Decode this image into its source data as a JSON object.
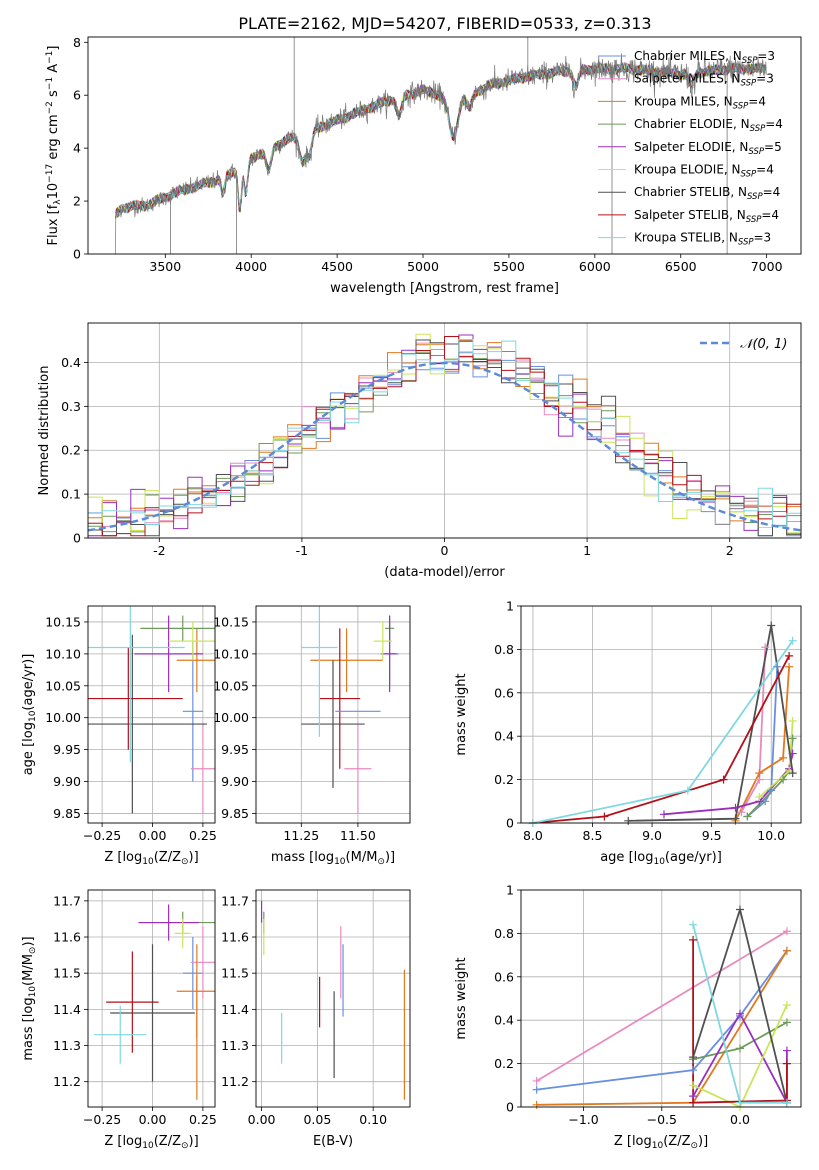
{
  "title": "PLATE=2162, MJD=54207, FIBERID=0533, z=0.313",
  "colors": {
    "chabrier_miles": "#6a8fe0",
    "salpeter_miles": "#e88ac0",
    "kroupa_miles": "#e0791f",
    "chabrier_elodie": "#6e9b5a",
    "salpeter_elodie": "#9a2fbf",
    "kroupa_elodie": "#cbe55a",
    "chabrier_stelib": "#505050",
    "salpeter_stelib": "#b3101a",
    "kroupa_stelib": "#7fd8e0",
    "data": "#777777",
    "gaussian": "#5b8ad6",
    "grid": "#b0b0b0"
  },
  "chart_data": [
    {
      "id": "spectrum",
      "type": "line",
      "xlabel": "wavelength [Angstrom, rest frame]",
      "ylabel": "Flux [f_λ 10^-17 erg cm^-2 s^-1 A^-1]",
      "xlim": [
        3050,
        7200
      ],
      "ylim": [
        0,
        8.2
      ],
      "xticks": [
        3500,
        4000,
        4500,
        5000,
        5500,
        6000,
        6500,
        7000
      ],
      "yticks": [
        0,
        2,
        4,
        6,
        8
      ],
      "legend_position": "top-right",
      "legend": [
        {
          "key": "chabrier_miles",
          "label": "Chabrier MILES, N",
          "sub": "SSP",
          "tail": "=3"
        },
        {
          "key": "salpeter_miles",
          "label": "Salpeter MILES, N",
          "sub": "SSP",
          "tail": "=3"
        },
        {
          "key": "kroupa_miles",
          "label": "Kroupa MILES, N",
          "sub": "SSP",
          "tail": "=4"
        },
        {
          "key": "chabrier_elodie",
          "label": "Chabrier ELODIE, N",
          "sub": "SSP",
          "tail": "=4"
        },
        {
          "key": "salpeter_elodie",
          "label": "Salpeter ELODIE, N",
          "sub": "SSP",
          "tail": "=5"
        },
        {
          "key": "kroupa_elodie",
          "label": "Kroupa ELODIE, N",
          "sub": "SSP",
          "tail": "=4"
        },
        {
          "key": "chabrier_stelib",
          "label": "Chabrier STELIB, N",
          "sub": "SSP",
          "tail": "=4"
        },
        {
          "key": "salpeter_stelib",
          "label": "Salpeter STELIB, N",
          "sub": "SSP",
          "tail": "=4"
        },
        {
          "key": "kroupa_stelib",
          "label": "Kroupa STELIB, N",
          "sub": "SSP",
          "tail": "=3"
        }
      ],
      "continuum": {
        "x": [
          3200,
          3250,
          3400,
          3550,
          3700,
          3850,
          4000,
          4200,
          4400,
          4600,
          4800,
          5000,
          5200,
          5400,
          5600,
          5800,
          6000,
          6200,
          6500,
          6800,
          7000
        ],
        "y": [
          1.4,
          1.75,
          1.85,
          2.3,
          2.6,
          2.9,
          3.6,
          4.3,
          4.8,
          5.3,
          5.8,
          6.2,
          5.8,
          6.4,
          6.7,
          6.9,
          7.0,
          7.0,
          6.8,
          7.0,
          7.0
        ]
      }
    },
    {
      "id": "residuals",
      "type": "bar",
      "xlabel": "(data-model)/error",
      "ylabel": "Normed distribution",
      "xlim": [
        -2.5,
        2.5
      ],
      "ylim": [
        0,
        0.49
      ],
      "xticks": [
        -2,
        -1,
        0,
        1,
        2
      ],
      "yticks": [
        0.0,
        0.1,
        0.2,
        0.3,
        0.4
      ],
      "grid": true,
      "legend_position": "top-right",
      "gaussian_label": "N(0, 1)",
      "bin_width": 0.1
    },
    {
      "id": "age_vs_Z",
      "type": "scatter",
      "xlabel": "Z [log10(Z/Z⊙)]",
      "ylabel": "age  [log10(age/yr)]",
      "xlim": [
        -0.32,
        0.31
      ],
      "ylim": [
        9.835,
        10.175
      ],
      "xticks": [
        -0.25,
        0.0,
        0.25
      ],
      "xticklabels": [
        "−0.25",
        "0.00",
        "0.25"
      ],
      "yticks": [
        9.85,
        9.9,
        9.95,
        10.0,
        10.05,
        10.1,
        10.15
      ],
      "yticklabels": [
        "9.85",
        "9.90",
        "9.95",
        "10.00",
        "10.05",
        "10.10",
        "10.15"
      ],
      "grid": true,
      "points": [
        {
          "key": "chabrier_miles",
          "x": 0.2,
          "xerr": 0.05,
          "y": 10.01,
          "yerr": 0.11
        },
        {
          "key": "salpeter_miles",
          "x": 0.25,
          "xerr": 0.06,
          "y": 9.92,
          "yerr": 0.07
        },
        {
          "key": "kroupa_miles",
          "x": 0.22,
          "xerr": 0.1,
          "y": 10.09,
          "yerr": 0.05
        },
        {
          "key": "chabrier_elodie",
          "x": 0.15,
          "xerr": 0.21,
          "y": 10.14,
          "yerr": 0.02
        },
        {
          "key": "salpeter_elodie",
          "x": 0.08,
          "xerr": 0.17,
          "y": 10.1,
          "yerr": 0.06
        },
        {
          "key": "kroupa_elodie",
          "x": 0.2,
          "xerr": 0.12,
          "y": 10.12,
          "yerr": 0.03
        },
        {
          "key": "chabrier_stelib",
          "x": -0.1,
          "xerr": 0.37,
          "y": 9.99,
          "yerr": 0.14
        },
        {
          "key": "salpeter_stelib",
          "x": -0.12,
          "xerr": 0.27,
          "y": 10.03,
          "yerr": 0.08
        },
        {
          "key": "kroupa_stelib",
          "x": -0.11,
          "xerr": 0.27,
          "y": 10.11,
          "yerr": 0.18
        }
      ]
    },
    {
      "id": "age_vs_mass",
      "type": "scatter",
      "xlabel": "mass [log10(M/M⊙)]",
      "ylabel": "",
      "xlim": [
        11.05,
        11.73
      ],
      "ylim": [
        9.835,
        10.175
      ],
      "xticks": [
        11.25,
        11.5
      ],
      "xticklabels": [
        "11.25",
        "11.50"
      ],
      "yticks": [
        9.85,
        9.9,
        9.95,
        10.0,
        10.05,
        10.1,
        10.15
      ],
      "yticklabels": [
        "9.85",
        "9.90",
        "9.95",
        "10.00",
        "10.05",
        "10.10",
        "10.15"
      ],
      "grid": true,
      "points": [
        {
          "key": "chabrier_miles",
          "x": 11.64,
          "xerr": 0.04,
          "y": 10.1,
          "yerr": 0.05
        },
        {
          "key": "salpeter_miles",
          "x": 11.5,
          "xerr": 0.06,
          "y": 9.92,
          "yerr": 0.07
        },
        {
          "key": "kroupa_miles",
          "x": 11.45,
          "xerr": 0.16,
          "y": 10.09,
          "yerr": 0.05
        },
        {
          "key": "chabrier_elodie",
          "x": 11.64,
          "xerr": 0.02,
          "y": 10.14,
          "yerr": 0.02
        },
        {
          "key": "salpeter_elodie",
          "x": 11.64,
          "xerr": 0.03,
          "y": 10.1,
          "yerr": 0.06
        },
        {
          "key": "kroupa_elodie",
          "x": 11.61,
          "xerr": 0.04,
          "y": 10.12,
          "yerr": 0.03
        },
        {
          "key": "chabrier_stelib",
          "x": 11.39,
          "xerr": 0.14,
          "y": 9.99,
          "yerr": 0.1
        },
        {
          "key": "salpeter_stelib",
          "x": 11.42,
          "xerr": 0.09,
          "y": 10.03,
          "yerr": 0.11
        },
        {
          "key": "kroupa_stelib",
          "x": 11.33,
          "xerr": 0.08,
          "y": 10.11,
          "yerr": 0.14
        },
        {
          "key": "chabrier_miles",
          "x": 11.5,
          "xerr": 0.1,
          "y": 10.01,
          "yerr": 0.0
        }
      ]
    },
    {
      "id": "massweight_vs_age",
      "type": "line",
      "xlabel": "age  [log10(age/yr)]",
      "ylabel": "mass weight",
      "xlim": [
        7.9,
        10.25
      ],
      "ylim": [
        0,
        1.0
      ],
      "xticks": [
        8.0,
        8.5,
        9.0,
        9.5,
        10.0
      ],
      "xticklabels": [
        "8.0",
        "8.5",
        "9.0",
        "9.5",
        "10.0"
      ],
      "yticks": [
        0.0,
        0.2,
        0.4,
        0.6,
        0.8,
        1.0
      ],
      "grid": true,
      "series": [
        {
          "key": "chabrier_miles",
          "x": [
            9.8,
            9.95,
            10.0,
            10.05
          ],
          "y": [
            0.03,
            0.1,
            0.15,
            0.72
          ]
        },
        {
          "key": "salpeter_miles",
          "x": [
            9.75,
            9.9,
            9.95
          ],
          "y": [
            0.05,
            0.2,
            0.81
          ]
        },
        {
          "key": "kroupa_miles",
          "x": [
            9.7,
            9.9,
            10.1,
            10.15
          ],
          "y": [
            0.01,
            0.23,
            0.3,
            0.72
          ]
        },
        {
          "key": "chabrier_elodie",
          "x": [
            9.8,
            10.1,
            10.15,
            10.18
          ],
          "y": [
            0.03,
            0.2,
            0.24,
            0.39
          ]
        },
        {
          "key": "salpeter_elodie",
          "x": [
            9.1,
            9.7,
            9.9,
            10.15,
            10.18
          ],
          "y": [
            0.04,
            0.07,
            0.1,
            0.25,
            0.32
          ]
        },
        {
          "key": "kroupa_elodie",
          "x": [
            9.9,
            10.15,
            10.18
          ],
          "y": [
            0.12,
            0.24,
            0.47
          ]
        },
        {
          "key": "chabrier_stelib",
          "x": [
            8.8,
            9.7,
            10.0,
            10.18
          ],
          "y": [
            0.01,
            0.02,
            0.91,
            0.23
          ]
        },
        {
          "key": "salpeter_stelib",
          "x": [
            8.0,
            8.6,
            9.6,
            10.15
          ],
          "y": [
            0.0,
            0.03,
            0.2,
            0.77
          ]
        },
        {
          "key": "kroupa_stelib",
          "x": [
            8.0,
            9.3,
            10.18
          ],
          "y": [
            0.0,
            0.15,
            0.84
          ]
        }
      ]
    },
    {
      "id": "mass_vs_Z",
      "type": "scatter",
      "xlabel": "Z [log10(Z/Z⊙)]",
      "ylabel": "mass [log10(M/M⊙)]",
      "xlim": [
        -0.32,
        0.31
      ],
      "ylim": [
        11.13,
        11.73
      ],
      "xticks": [
        -0.25,
        0.0,
        0.25
      ],
      "xticklabels": [
        "−0.25",
        "0.00",
        "0.25"
      ],
      "yticks": [
        11.2,
        11.3,
        11.4,
        11.5,
        11.6,
        11.7
      ],
      "yticklabels": [
        "11.2",
        "11.3",
        "11.4",
        "11.5",
        "11.6",
        "11.7"
      ],
      "grid": true,
      "points": [
        {
          "key": "chabrier_miles",
          "x": 0.2,
          "xerr": 0.05,
          "y": 11.5,
          "yerr": 0.1
        },
        {
          "key": "salpeter_miles",
          "x": 0.25,
          "xerr": 0.06,
          "y": 11.53,
          "yerr": 0.1
        },
        {
          "key": "kroupa_miles",
          "x": 0.22,
          "xerr": 0.1,
          "y": 11.45,
          "yerr": 0.13
        },
        {
          "key": "chabrier_elodie",
          "x": 0.15,
          "xerr": 0.21,
          "y": 11.64,
          "yerr": 0.03
        },
        {
          "key": "salpeter_elodie",
          "x": 0.08,
          "xerr": 0.15,
          "y": 11.64,
          "yerr": 0.05
        },
        {
          "key": "kroupa_elodie",
          "x": 0.15,
          "xerr": 0.04,
          "y": 11.61,
          "yerr": 0.04
        },
        {
          "key": "chabrier_stelib",
          "x": 0.0,
          "xerr": 0.21,
          "y": 11.39,
          "yerr": 0.19
        },
        {
          "key": "salpeter_stelib",
          "x": -0.1,
          "xerr": 0.13,
          "y": 11.42,
          "yerr": 0.14
        },
        {
          "key": "kroupa_stelib",
          "x": -0.16,
          "xerr": 0.13,
          "y": 11.33,
          "yerr": 0.08
        },
        {
          "key": "kroupa_miles",
          "x": 0.22,
          "xerr": 0.0,
          "y": 11.32,
          "yerr": 0.17
        }
      ]
    },
    {
      "id": "mass_vs_ebv",
      "type": "scatter",
      "xlabel": "E(B-V)",
      "ylabel": "",
      "xlim": [
        -0.005,
        0.133
      ],
      "ylim": [
        11.13,
        11.73
      ],
      "xticks": [
        0.0,
        0.05,
        0.1
      ],
      "xticklabels": [
        "0.00",
        "0.05",
        "0.10"
      ],
      "yticks": [
        11.2,
        11.3,
        11.4,
        11.5,
        11.6,
        11.7
      ],
      "yticklabels": [
        "11.2",
        "11.3",
        "11.4",
        "11.5",
        "11.6",
        "11.7"
      ],
      "grid": true,
      "points": [
        {
          "key": "chabrier_miles",
          "x": 0.073,
          "xerr": 0.0,
          "y": 11.48,
          "yerr": 0.1
        },
        {
          "key": "salpeter_miles",
          "x": 0.071,
          "xerr": 0.0,
          "y": 11.53,
          "yerr": 0.1
        },
        {
          "key": "kroupa_miles",
          "x": 0.128,
          "xerr": 0.0,
          "y": 11.33,
          "yerr": 0.18
        },
        {
          "key": "chabrier_elodie",
          "x": 0.002,
          "xerr": 0.0,
          "y": 11.64,
          "yerr": 0.03
        },
        {
          "key": "salpeter_elodie",
          "x": 0.0,
          "xerr": 0.0,
          "y": 11.67,
          "yerr": 0.03
        },
        {
          "key": "kroupa_elodie",
          "x": 0.002,
          "xerr": 0.0,
          "y": 11.6,
          "yerr": 0.05
        },
        {
          "key": "chabrier_stelib",
          "x": 0.065,
          "xerr": 0.0,
          "y": 11.33,
          "yerr": 0.12
        },
        {
          "key": "salpeter_stelib",
          "x": 0.052,
          "xerr": 0.0,
          "y": 11.42,
          "yerr": 0.07
        },
        {
          "key": "kroupa_stelib",
          "x": 0.018,
          "xerr": 0.0,
          "y": 11.32,
          "yerr": 0.07
        }
      ]
    },
    {
      "id": "massweight_vs_Z",
      "type": "line",
      "xlabel": "Z [log10(Z/Z⊙)]",
      "ylabel": "mass weight",
      "xlim": [
        -1.4,
        0.39
      ],
      "ylim": [
        0,
        1.0
      ],
      "xticks": [
        -1.0,
        -0.5,
        0.0
      ],
      "xticklabels": [
        "−1.0",
        "−0.5",
        "0.0"
      ],
      "yticks": [
        0.0,
        0.2,
        0.4,
        0.6,
        0.8,
        1.0
      ],
      "grid": true,
      "series": [
        {
          "key": "chabrier_miles",
          "x": [
            -1.3,
            -0.3,
            0.0,
            0.3
          ],
          "y": [
            0.08,
            0.17,
            0.42,
            0.72
          ]
        },
        {
          "key": "salpeter_miles",
          "x": [
            -1.3,
            0.3
          ],
          "y": [
            0.12,
            0.81
          ]
        },
        {
          "key": "kroupa_miles",
          "x": [
            -1.3,
            -0.3,
            0.3
          ],
          "y": [
            0.01,
            0.02,
            0.72
          ]
        },
        {
          "key": "chabrier_elodie",
          "x": [
            -0.3,
            0.0,
            0.3
          ],
          "y": [
            0.22,
            0.27,
            0.39
          ]
        },
        {
          "key": "salpeter_elodie",
          "x": [
            -0.3,
            0.0,
            0.3,
            0.3
          ],
          "y": [
            0.05,
            0.43,
            0.02,
            0.26
          ]
        },
        {
          "key": "kroupa_elodie",
          "x": [
            -0.3,
            0.0,
            0.3
          ],
          "y": [
            0.1,
            0.0,
            0.47
          ]
        },
        {
          "key": "chabrier_stelib",
          "x": [
            -0.3,
            0.0,
            0.3
          ],
          "y": [
            0.23,
            0.91,
            0.02
          ]
        },
        {
          "key": "salpeter_stelib",
          "x": [
            -0.3,
            -0.3,
            0.3,
            0.3
          ],
          "y": [
            0.77,
            0.02,
            0.03,
            0.2
          ]
        },
        {
          "key": "kroupa_stelib",
          "x": [
            -0.3,
            0.0,
            0.3
          ],
          "y": [
            0.84,
            0.02,
            0.02
          ]
        }
      ]
    }
  ]
}
